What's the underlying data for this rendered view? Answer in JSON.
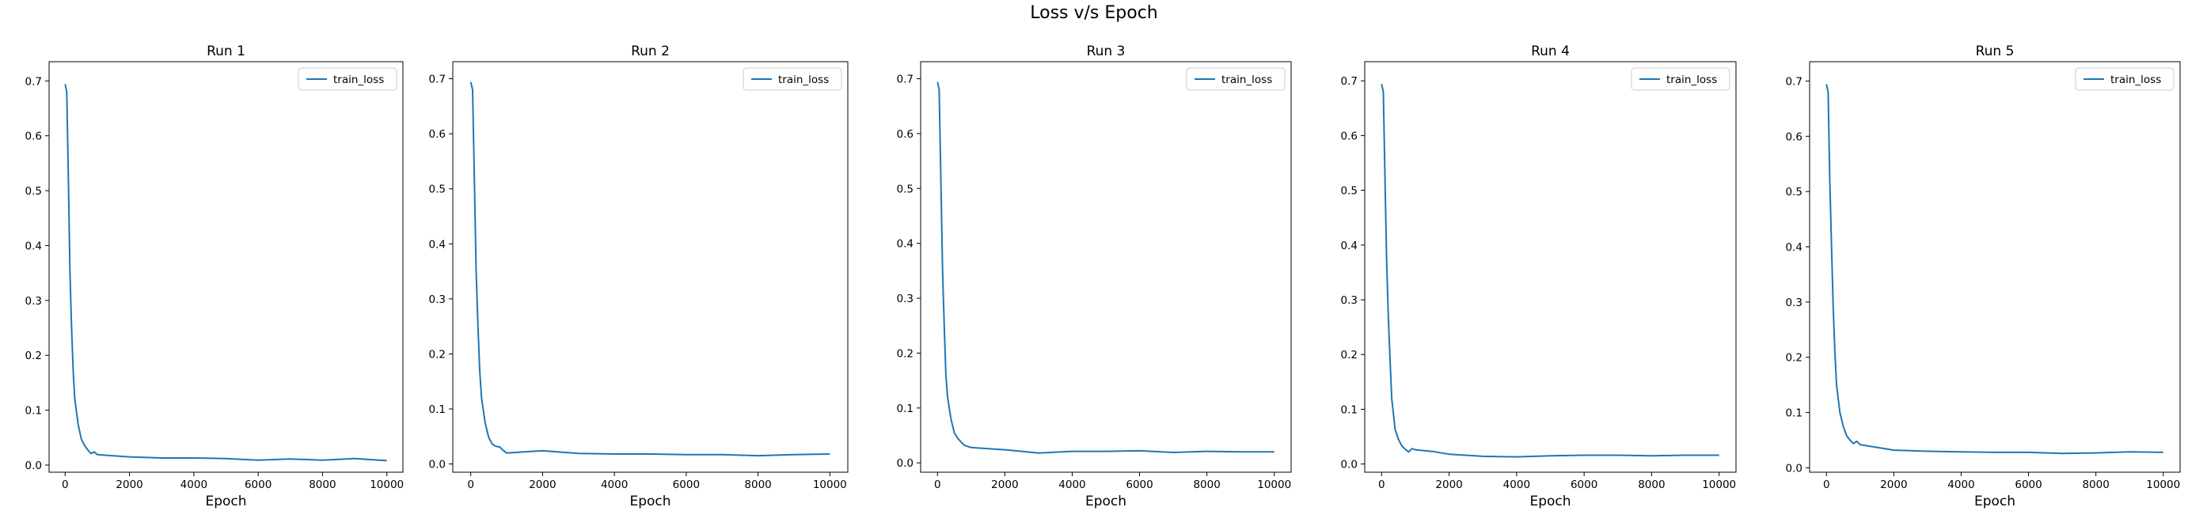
{
  "suptitle": "Loss v/s Epoch",
  "colors": {
    "series": "#1f77b4",
    "axes": "#000000",
    "legend_border": "#cccccc"
  },
  "chart_data": [
    {
      "type": "line",
      "title": "Run 1",
      "xlabel": "Epoch",
      "ylabel": "",
      "xlim": [
        -500,
        10500
      ],
      "ylim": [
        -0.013,
        0.735
      ],
      "xticks": [
        0,
        2000,
        4000,
        6000,
        8000,
        10000
      ],
      "yticks": [
        0.0,
        0.1,
        0.2,
        0.3,
        0.4,
        0.5,
        0.6,
        0.7
      ],
      "grid": false,
      "legend_position": "top-right",
      "series": [
        {
          "name": "train_loss",
          "x": [
            0,
            50,
            100,
            150,
            200,
            250,
            300,
            400,
            500,
            600,
            700,
            800,
            900,
            1000,
            1500,
            2000,
            3000,
            4000,
            5000,
            6000,
            7000,
            8000,
            9000,
            10000
          ],
          "y": [
            0.694,
            0.68,
            0.52,
            0.35,
            0.25,
            0.17,
            0.12,
            0.075,
            0.048,
            0.036,
            0.028,
            0.021,
            0.024,
            0.019,
            0.017,
            0.015,
            0.013,
            0.013,
            0.012,
            0.009,
            0.011,
            0.009,
            0.012,
            0.008
          ]
        }
      ]
    },
    {
      "type": "line",
      "title": "Run 2",
      "xlabel": "Epoch",
      "ylabel": "",
      "xlim": [
        -500,
        10500
      ],
      "ylim": [
        -0.015,
        0.731
      ],
      "xticks": [
        0,
        2000,
        4000,
        6000,
        8000,
        10000
      ],
      "yticks": [
        0.0,
        0.1,
        0.2,
        0.3,
        0.4,
        0.5,
        0.6,
        0.7
      ],
      "grid": false,
      "legend_position": "top-right",
      "series": [
        {
          "name": "train_loss",
          "x": [
            0,
            50,
            100,
            150,
            200,
            250,
            300,
            400,
            500,
            600,
            700,
            800,
            900,
            1000,
            1500,
            2000,
            3000,
            4000,
            5000,
            6000,
            7000,
            8000,
            9000,
            10000
          ],
          "y": [
            0.694,
            0.68,
            0.52,
            0.35,
            0.25,
            0.17,
            0.12,
            0.075,
            0.048,
            0.036,
            0.032,
            0.031,
            0.025,
            0.02,
            0.022,
            0.024,
            0.019,
            0.018,
            0.018,
            0.017,
            0.017,
            0.015,
            0.017,
            0.018
          ]
        }
      ]
    },
    {
      "type": "line",
      "title": "Run 3",
      "xlabel": "Epoch",
      "ylabel": "",
      "xlim": [
        -500,
        10500
      ],
      "ylim": [
        -0.017,
        0.731
      ],
      "xticks": [
        0,
        2000,
        4000,
        6000,
        8000,
        10000
      ],
      "yticks": [
        0.0,
        0.1,
        0.2,
        0.3,
        0.4,
        0.5,
        0.6,
        0.7
      ],
      "grid": false,
      "legend_position": "top-right",
      "series": [
        {
          "name": "train_loss",
          "x": [
            0,
            50,
            100,
            150,
            200,
            250,
            300,
            400,
            500,
            600,
            700,
            800,
            900,
            1000,
            1500,
            2000,
            3000,
            4000,
            5000,
            6000,
            7000,
            8000,
            9000,
            10000
          ],
          "y": [
            0.694,
            0.68,
            0.52,
            0.35,
            0.25,
            0.16,
            0.12,
            0.08,
            0.055,
            0.045,
            0.038,
            0.032,
            0.03,
            0.028,
            0.026,
            0.024,
            0.018,
            0.021,
            0.021,
            0.022,
            0.019,
            0.021,
            0.02,
            0.02
          ]
        }
      ]
    },
    {
      "type": "line",
      "title": "Run 4",
      "xlabel": "Epoch",
      "ylabel": "",
      "xlim": [
        -500,
        10500
      ],
      "ylim": [
        -0.015,
        0.735
      ],
      "xticks": [
        0,
        2000,
        4000,
        6000,
        8000,
        10000
      ],
      "yticks": [
        0.0,
        0.1,
        0.2,
        0.3,
        0.4,
        0.5,
        0.6,
        0.7
      ],
      "grid": false,
      "legend_position": "top-right",
      "series": [
        {
          "name": "train_loss",
          "x": [
            0,
            50,
            100,
            150,
            200,
            250,
            300,
            400,
            500,
            600,
            700,
            800,
            900,
            1000,
            1500,
            2000,
            3000,
            4000,
            5000,
            6000,
            7000,
            8000,
            9000,
            10000
          ],
          "y": [
            0.694,
            0.68,
            0.52,
            0.37,
            0.27,
            0.19,
            0.12,
            0.063,
            0.045,
            0.033,
            0.027,
            0.022,
            0.028,
            0.026,
            0.023,
            0.018,
            0.014,
            0.013,
            0.015,
            0.016,
            0.016,
            0.015,
            0.016,
            0.016
          ]
        }
      ]
    },
    {
      "type": "line",
      "title": "Run 5",
      "xlabel": "Epoch",
      "ylabel": "",
      "xlim": [
        -500,
        10500
      ],
      "ylim": [
        -0.008,
        0.735
      ],
      "xticks": [
        0,
        2000,
        4000,
        6000,
        8000,
        10000
      ],
      "yticks": [
        0.0,
        0.1,
        0.2,
        0.3,
        0.4,
        0.5,
        0.6,
        0.7
      ],
      "grid": false,
      "legend_position": "top-right",
      "series": [
        {
          "name": "train_loss",
          "x": [
            0,
            50,
            100,
            150,
            200,
            250,
            300,
            400,
            500,
            600,
            700,
            800,
            900,
            1000,
            1500,
            2000,
            3000,
            4000,
            5000,
            6000,
            7000,
            8000,
            9000,
            10000
          ],
          "y": [
            0.694,
            0.68,
            0.52,
            0.4,
            0.29,
            0.21,
            0.15,
            0.1,
            0.075,
            0.058,
            0.05,
            0.044,
            0.048,
            0.042,
            0.037,
            0.032,
            0.03,
            0.029,
            0.028,
            0.028,
            0.026,
            0.027,
            0.029,
            0.028
          ]
        }
      ]
    }
  ]
}
